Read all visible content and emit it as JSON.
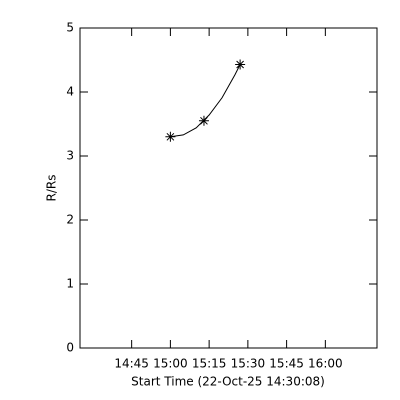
{
  "chart_data": {
    "type": "scatter",
    "xlabel": "Start Time (22-Oct-25 14:30:08)",
    "ylabel": "R/Rs",
    "xlim": [
      865,
      980
    ],
    "xticks": [
      {
        "value": 885,
        "label": "14:45"
      },
      {
        "value": 900,
        "label": "15:00"
      },
      {
        "value": 915,
        "label": "15:15"
      },
      {
        "value": 930,
        "label": "15:30"
      },
      {
        "value": 945,
        "label": "15:45"
      },
      {
        "value": 960,
        "label": "16:00"
      }
    ],
    "ylim": [
      0,
      5
    ],
    "yticks": [
      0,
      1,
      2,
      3,
      4,
      5
    ],
    "series": [
      {
        "type": "scatter",
        "color": "#000000",
        "x": [
          900,
          913,
          927
        ],
        "values": [
          3.3,
          3.55,
          4.43
        ]
      },
      {
        "type": "line",
        "color": "#000000",
        "x": [
          900,
          905,
          910,
          915,
          920,
          925,
          927
        ],
        "values": [
          3.3,
          3.33,
          3.44,
          3.64,
          3.91,
          4.27,
          4.43
        ]
      }
    ]
  }
}
